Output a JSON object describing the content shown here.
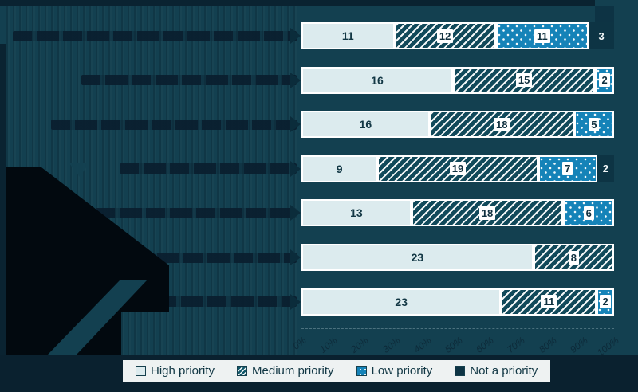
{
  "chart_data": {
    "type": "bar",
    "stacked": true,
    "orientation": "horizontal",
    "normalized_to_100_percent": true,
    "x_axis": {
      "ticks": [
        "0%",
        "10%",
        "20%",
        "30%",
        "40%",
        "50%",
        "60%",
        "70%",
        "80%",
        "90%",
        "100%"
      ],
      "range": [
        0,
        100
      ],
      "grid": false
    },
    "legend_position": "bottom",
    "series_names": [
      "High priority",
      "Medium priority",
      "Low priority",
      "Not a priority"
    ],
    "rows": [
      {
        "label": "",
        "segments": [
          {
            "series": "High priority",
            "value": 11
          },
          {
            "series": "Medium priority",
            "value": 12
          },
          {
            "series": "Low priority",
            "value": 11
          },
          {
            "series": "Not a priority",
            "value": 3
          }
        ]
      },
      {
        "label": "",
        "segments": [
          {
            "series": "High priority",
            "value": 16
          },
          {
            "series": "Medium priority",
            "value": 15
          },
          {
            "series": "Low priority",
            "value": 2
          }
        ]
      },
      {
        "label": "",
        "segments": [
          {
            "series": "High priority",
            "value": 16
          },
          {
            "series": "Medium priority",
            "value": 18
          },
          {
            "series": "Low priority",
            "value": 5
          }
        ]
      },
      {
        "label": "",
        "segments": [
          {
            "series": "High priority",
            "value": 9
          },
          {
            "series": "Medium priority",
            "value": 19
          },
          {
            "series": "Low priority",
            "value": 7
          },
          {
            "series": "Not a priority",
            "value": 2
          }
        ]
      },
      {
        "label": "",
        "segments": [
          {
            "series": "High priority",
            "value": 13
          },
          {
            "series": "Medium priority",
            "value": 18
          },
          {
            "series": "Low priority",
            "value": 6
          }
        ]
      },
      {
        "label": "",
        "segments": [
          {
            "series": "High priority",
            "value": 23
          },
          {
            "series": "Medium priority",
            "value": 8
          }
        ]
      },
      {
        "label": "",
        "segments": [
          {
            "series": "High priority",
            "value": 23
          },
          {
            "series": "Medium priority",
            "value": 11
          },
          {
            "series": "Low priority",
            "value": 2
          }
        ]
      }
    ]
  },
  "legend": {
    "items": [
      {
        "key": "high",
        "label": "High priority"
      },
      {
        "key": "medium",
        "label": "Medium priority"
      },
      {
        "key": "low",
        "label": "Low priority"
      },
      {
        "key": "not",
        "label": "Not a priority"
      }
    ]
  },
  "colors": {
    "background_teal": "#134050",
    "dark_band": "#0a2331",
    "bottom_band": "#0a212f",
    "black_shape": "#02090f",
    "high_priority_fill": "#dcebee",
    "medium_priority_base": "#11495a",
    "low_priority_fill": "#1583b8",
    "not_a_priority_fill": "#0d3444",
    "legend_background": "#eef2f2",
    "legend_text": "#113744",
    "value_chip_background": "#ffffff"
  }
}
